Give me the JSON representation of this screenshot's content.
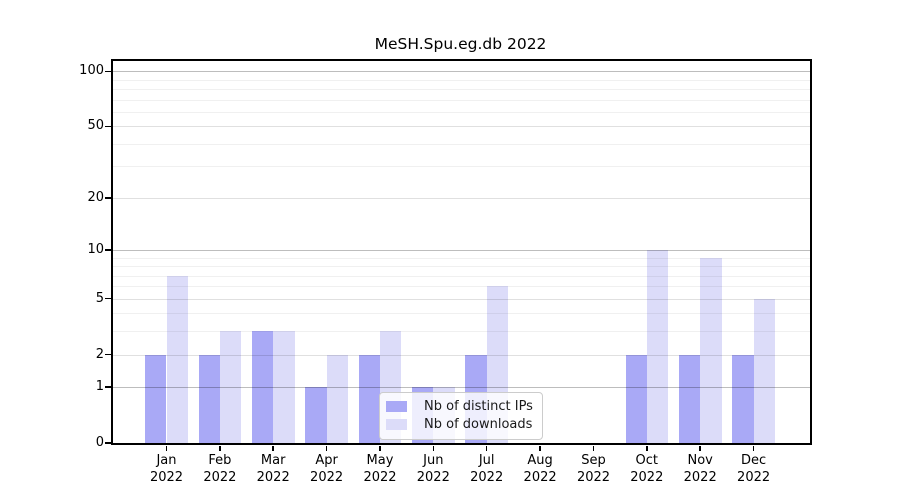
{
  "chart_data": {
    "type": "bar",
    "title": "MeSH.Spu.eg.db 2022",
    "categories": [
      "Jan",
      "Feb",
      "Mar",
      "Apr",
      "May",
      "Jun",
      "Jul",
      "Aug",
      "Sep",
      "Oct",
      "Nov",
      "Dec"
    ],
    "year": "2022",
    "series": [
      {
        "name": "Nb of distinct IPs",
        "color": "#a9a9f6",
        "values": [
          2,
          2,
          3,
          1,
          2,
          1,
          2,
          0,
          0,
          2,
          2,
          2
        ]
      },
      {
        "name": "Nb of downloads",
        "color": "#dcdcf9",
        "values": [
          7,
          3,
          3,
          2,
          3,
          1,
          6,
          0,
          0,
          10,
          9,
          5
        ]
      }
    ],
    "yscale": "log1p",
    "ylim": [
      0,
      113
    ],
    "yticks": [
      0,
      1,
      2,
      5,
      10,
      20,
      50,
      100
    ],
    "minor_yticks": [
      3,
      4,
      6,
      7,
      8,
      9,
      30,
      40,
      60,
      70,
      80,
      90
    ],
    "grid": true,
    "legend_position": "lower center"
  }
}
